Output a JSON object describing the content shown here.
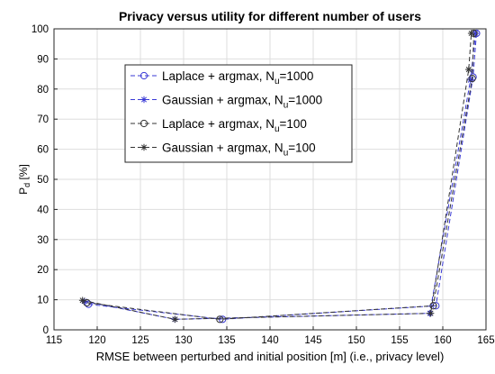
{
  "chart_data": {
    "type": "line",
    "title": "Privacy versus utility for different number of users",
    "xlabel": "RMSE between perturbed and initial position [m] (i.e., privacy level)",
    "ylabel_main": "P",
    "ylabel_sub": "d",
    "ylabel_unit": " [%]",
    "xlim": [
      115,
      165
    ],
    "ylim": [
      0,
      100
    ],
    "xticks": [
      115,
      120,
      125,
      130,
      135,
      140,
      145,
      150,
      155,
      160,
      165
    ],
    "yticks": [
      0,
      10,
      20,
      30,
      40,
      50,
      60,
      70,
      80,
      90,
      100
    ],
    "grid": true,
    "legend_position": "upper-left-inside",
    "series": [
      {
        "name_main": "Laplace + argmax, N",
        "name_sub": "u",
        "name_tail": "=1000",
        "color": "#3a3ad6",
        "marker": "circle",
        "x": [
          119.0,
          134.5,
          159.2,
          163.5,
          163.9
        ],
        "y": [
          8.5,
          3.5,
          8.0,
          84.0,
          98.5
        ]
      },
      {
        "name_main": "Gaussian + argmax, N",
        "name_sub": "u",
        "name_tail": "=1000",
        "color": "#3a3ad6",
        "marker": "star",
        "x": [
          118.5,
          129.0,
          158.5,
          163.2,
          163.8
        ],
        "y": [
          9.5,
          3.5,
          5.5,
          83.0,
          98.5
        ]
      },
      {
        "name_main": "Laplace + argmax, N",
        "name_sub": "u",
        "name_tail": "=100",
        "color": "#333333",
        "marker": "circle",
        "x": [
          118.8,
          134.2,
          158.9,
          163.4,
          163.6
        ],
        "y": [
          9.0,
          3.5,
          8.0,
          83.5,
          98.5
        ]
      },
      {
        "name_main": "Gaussian + argmax, N",
        "name_sub": "u",
        "name_tail": "=100",
        "color": "#333333",
        "marker": "star",
        "x": [
          118.3,
          129.0,
          158.6,
          163.0,
          163.3
        ],
        "y": [
          9.8,
          3.5,
          5.5,
          86.5,
          98.5
        ]
      }
    ]
  }
}
